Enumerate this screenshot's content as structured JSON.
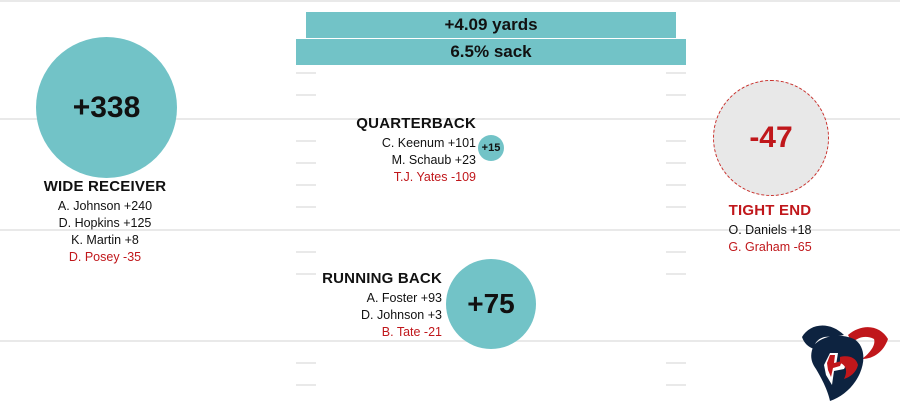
{
  "banners": {
    "yards": "+4.09 yards",
    "sack": "6.5% sack"
  },
  "positions": {
    "wide_receiver": {
      "score": "+338",
      "title": "WIDE RECEIVER",
      "players": [
        "A. Johnson +240",
        "D. Hopkins +125",
        "K. Martin +8",
        "D. Posey -35"
      ]
    },
    "quarterback": {
      "score": "+15",
      "title": "QUARTERBACK",
      "players": [
        "C. Keenum +101",
        "M. Schaub +23",
        "T.J. Yates -109"
      ]
    },
    "running_back": {
      "score": "+75",
      "title": "RUNNING BACK",
      "players": [
        "A. Foster +93",
        "D. Johnson +3",
        "B. Tate -21"
      ]
    },
    "tight_end": {
      "score": "-47",
      "title": "TIGHT END",
      "players": [
        "O. Daniels +18",
        "G. Graham -65"
      ]
    }
  },
  "logo": {
    "icon": "houston-texans-logo-icon"
  },
  "colors": {
    "teal": "#72c3c7",
    "negative": "#c0171b",
    "navy": "#0d2340"
  }
}
